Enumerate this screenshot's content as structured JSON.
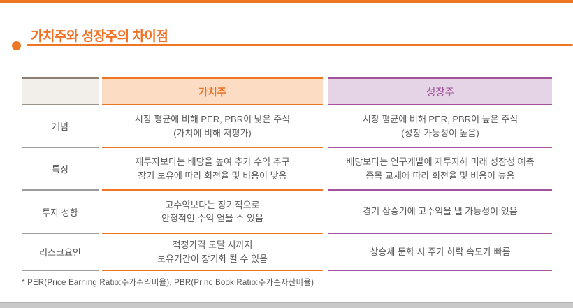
{
  "page": {
    "title": "가치주와 성장주의 차이점"
  },
  "table": {
    "columns": [
      {
        "label": "",
        "accent": "#8d7f73"
      },
      {
        "label": "가치주",
        "accent": "#ee7623"
      },
      {
        "label": "성장주",
        "accent": "#a2539c"
      }
    ],
    "rows": [
      {
        "label": "개념",
        "value": "시장 평균에 비해 PER, PBR이 낮은 주식\n(가치에 비해 저평가)",
        "growth": "시장 평균에 비해 PER, PBR이 높은 주식\n(성장 가능성이 높음)"
      },
      {
        "label": "특징",
        "value": "재투자보다는 배당을 높여 추가 수익 추구\n장기 보유에 따라 회전율 및 비용이 낮음",
        "growth": "배당보다는 연구개발에 재투자해 미래 성장성 예측\n종목 교체에 따라 회전율 및 비용이 높음"
      },
      {
        "label": "투자 성향",
        "value": "고수익보다는 장기적으로\n안정적인 수익 얻을 수 있음",
        "growth": "경기 상승기에 고수익을 낼 가능성이 있음"
      },
      {
        "label": "리스크요인",
        "value": "적정가격 도달 시까지\n보유기간이 장기화 될 수 있음",
        "growth": "상승세 둔화 시 주가 하락 속도가 빠름"
      }
    ]
  },
  "footnote": "* PER(Price Earning Ratio:주가수익비율), PBR(Princ Book Ratio:주가순자산비율)",
  "colors": {
    "accent_orange": "#ee7623",
    "accent_purple": "#a2539c",
    "title_orange": "#f26f21",
    "value_header_fill": "#fcdcc3",
    "growth_header_fill": "#e5d4e6",
    "label_header_fill": "#f2eeea",
    "label_header_border": "#8d7f73",
    "body_text": "#595959",
    "bottom_bar": "#c9c9c9"
  }
}
